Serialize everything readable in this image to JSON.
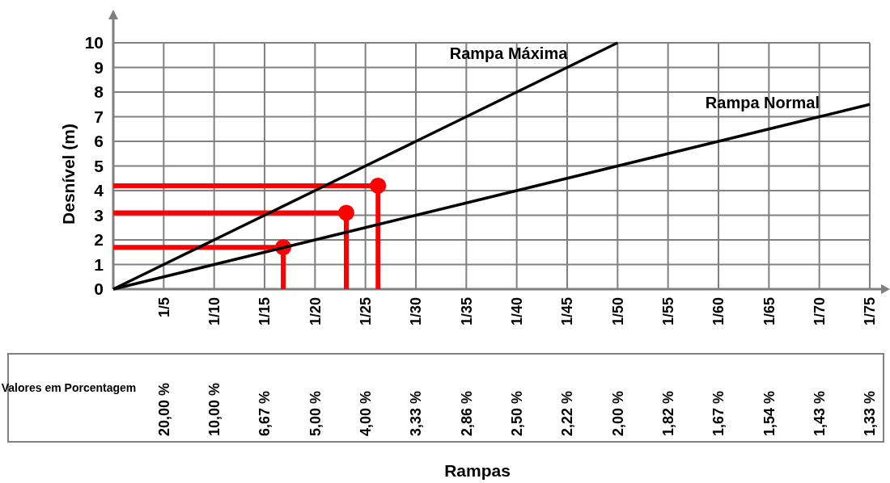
{
  "chart_data": {
    "type": "line",
    "ylabel": "Desnível (m)",
    "categories": [
      null,
      "1/5",
      "1/10",
      "1/15",
      "1/20",
      "1/25",
      "1/30",
      "1/35",
      "1/40",
      "1/45",
      "1/50",
      "1/55",
      "1/60",
      "1/65",
      "1/70",
      "1/75"
    ],
    "ylim": [
      0,
      10
    ],
    "yticks": [
      0,
      1,
      2,
      3,
      4,
      5,
      6,
      7,
      8,
      9,
      10
    ],
    "annotations": [
      "Valores em Porcentagem",
      "20,00 %",
      "10,00 %",
      "6,67 %",
      "5,00 %",
      "4,00 %",
      "3,33 %",
      "2,86 %",
      "2,50 %",
      "2,22 %",
      "2,00 %",
      "1,82 %",
      "1,67 %",
      "1,54 %",
      "1,43 %",
      "1,33 %",
      "Rampas"
    ],
    "grid": true,
    "ref_lines": [
      {
        "axis": "y",
        "value": 1.7,
        "color": "#ff0000"
      },
      {
        "axis": "y",
        "value": 3.1,
        "color": "#ff0000"
      },
      {
        "axis": "y",
        "value": 4.2,
        "color": "#ff0000"
      }
    ],
    "series": [
      {
        "name": "Rampa Máxima",
        "color": "#000000",
        "values": [
          0,
          1,
          2,
          3,
          4,
          5,
          6,
          7,
          8,
          9,
          10,
          null,
          null,
          null,
          null,
          null
        ]
      },
      {
        "name": "Rampa Normal",
        "color": "#000000",
        "values": [
          0,
          0.5,
          1,
          1.5,
          2,
          2.5,
          3,
          3.5,
          4,
          4.5,
          5,
          5.5,
          6,
          6.5,
          7,
          7.5
        ]
      }
    ]
  }
}
